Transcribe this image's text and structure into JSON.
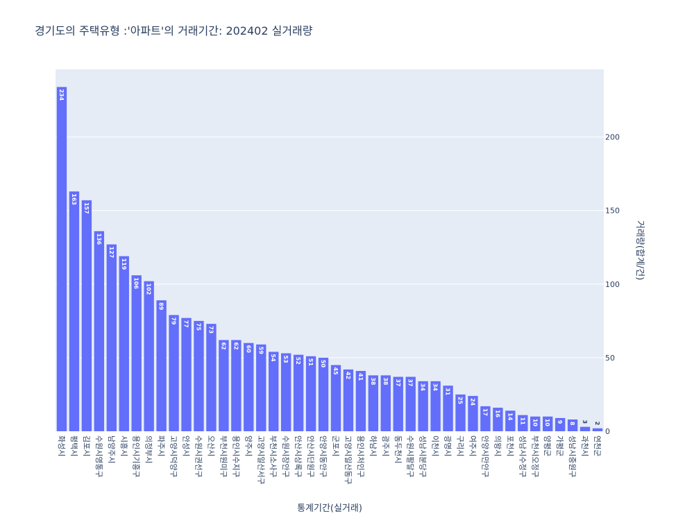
{
  "chart_data": {
    "type": "bar",
    "title": "경기도의 주택유형 :'아파트'의 거래기간: 202402 실거래량",
    "xlabel": "통계기간(실거래)",
    "ylabel": "거래량(합계/건)",
    "ylim": [
      0,
      246
    ],
    "yticks": [
      0,
      50,
      100,
      150,
      200
    ],
    "grid": true,
    "y_axis_side": "right",
    "bar_color": "#636efa",
    "plot_bg": "#e5ecf6",
    "categories": [
      "화성시",
      "평택시",
      "김포시",
      "수원시영통구",
      "남양주시",
      "시흥시",
      "용인시기흥구",
      "의정부시",
      "파주시",
      "고양시덕양구",
      "안성시",
      "수원시권선구",
      "오산시",
      "부천시원미구",
      "용인시수지구",
      "양주시",
      "고양시일산서구",
      "부천시소사구",
      "수원시장안구",
      "안산시상록구",
      "안산시단원구",
      "안양시동안구",
      "군포시",
      "고양시일산동구",
      "용인시처인구",
      "하남시",
      "광주시",
      "동두천시",
      "수원시팔달구",
      "성남시분당구",
      "이천시",
      "광명시",
      "구리시",
      "여주시",
      "안양시만안구",
      "의왕시",
      "포천시",
      "성남시수정구",
      "부천시오정구",
      "양평군",
      "가평군",
      "성남시중원구",
      "과천시",
      "연천군"
    ],
    "values": [
      234,
      163,
      157,
      136,
      127,
      119,
      106,
      102,
      89,
      79,
      77,
      75,
      73,
      62,
      62,
      60,
      59,
      54,
      53,
      52,
      51,
      50,
      45,
      42,
      41,
      38,
      38,
      37,
      37,
      34,
      34,
      31,
      25,
      24,
      17,
      16,
      14,
      11,
      10,
      10,
      9,
      8,
      3,
      2
    ]
  }
}
